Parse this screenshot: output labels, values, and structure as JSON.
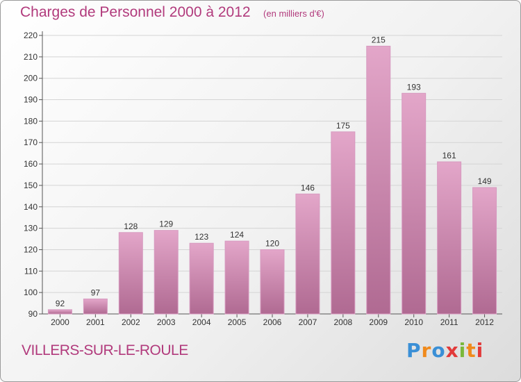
{
  "chart_data": {
    "type": "bar",
    "title": "Charges de Personnel 2000 à 2012",
    "subtitle": "(en milliers d'€)",
    "categories": [
      "2000",
      "2001",
      "2002",
      "2003",
      "2004",
      "2005",
      "2006",
      "2007",
      "2008",
      "2009",
      "2010",
      "2011",
      "2012"
    ],
    "values": [
      92,
      97,
      128,
      129,
      123,
      124,
      120,
      146,
      175,
      215,
      193,
      161,
      149
    ],
    "ylim": [
      90,
      220
    ],
    "yticks": [
      90,
      100,
      110,
      120,
      130,
      140,
      150,
      160,
      170,
      180,
      190,
      200,
      210,
      220
    ],
    "grid": true,
    "bar_color": "#c4709f"
  },
  "footer": {
    "commune": "VILLERS-SUR-LE-ROULE",
    "logo_text": "Proxiti"
  }
}
